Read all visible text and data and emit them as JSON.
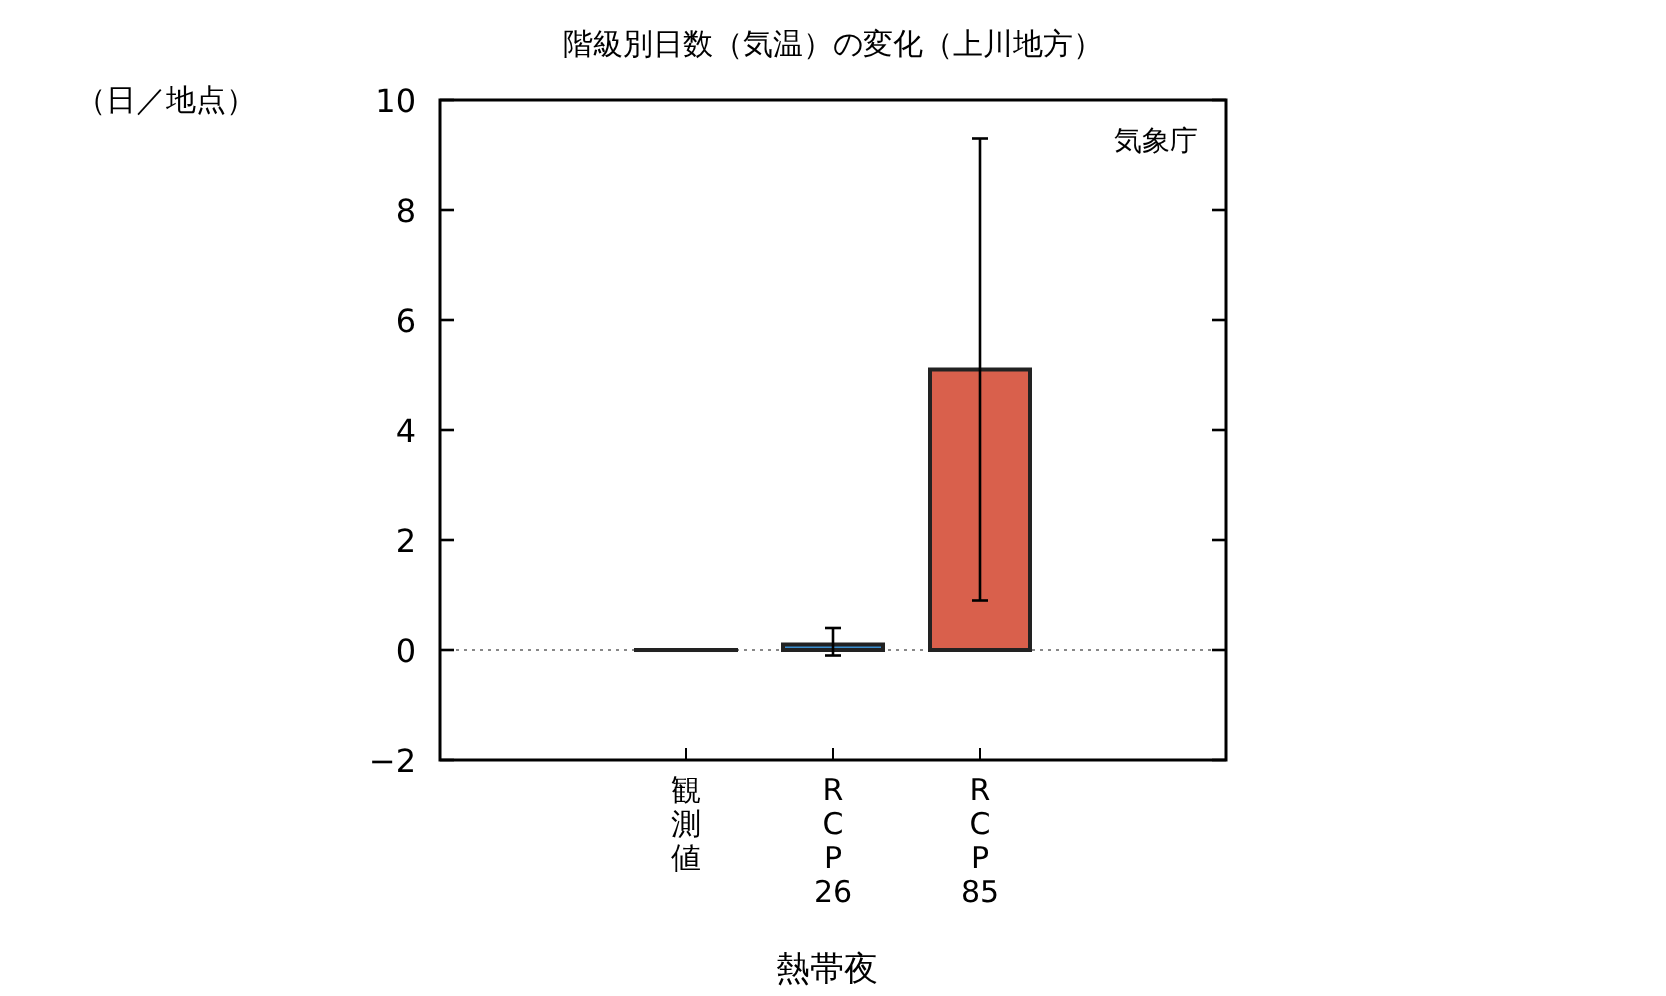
{
  "chart_data": {
    "type": "bar",
    "title": "階級別日数（気温）の変化（上川地方）",
    "ylabel": "（日／地点）",
    "xlabel": "熱帯夜",
    "categories": [
      "観測値",
      "RCP26",
      "RCP85"
    ],
    "values": [
      0,
      0.1,
      5.1
    ],
    "colors": [
      "#555555",
      "#3a8fd0",
      "#d9604c"
    ],
    "errors": [
      null,
      [
        -0.1,
        0.4
      ],
      [
        0.9,
        9.3
      ]
    ],
    "ylim": [
      -2,
      10
    ],
    "yticks": [
      -2,
      0,
      2,
      4,
      6,
      8,
      10
    ],
    "ref_lines": [
      {
        "axis": "y",
        "value": 0,
        "color": "#888888",
        "line_style": "dotted"
      }
    ],
    "annotations": [
      "気象庁"
    ],
    "grid": false
  }
}
